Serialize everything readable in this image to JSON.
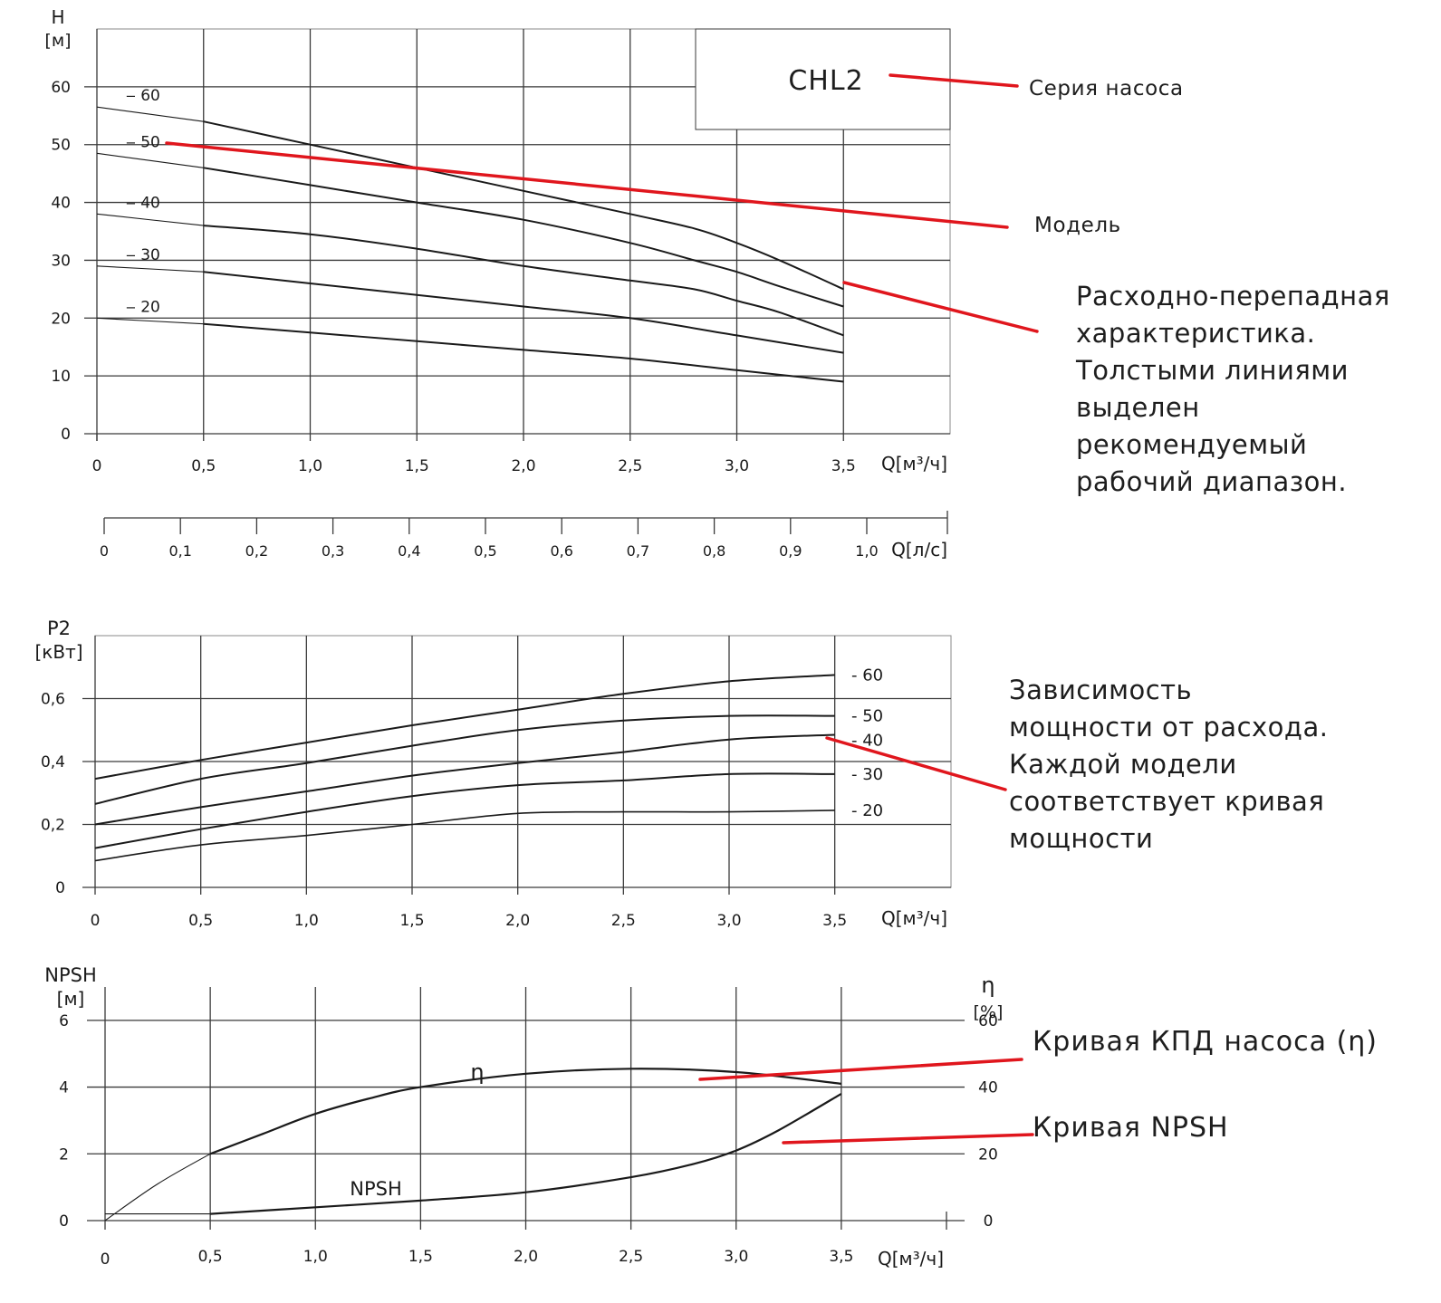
{
  "colors": {
    "curve": "#1a1a1a",
    "grid": "#3a3a3a",
    "pointer": "#e0161d",
    "text": "#1e1e1e"
  },
  "legend_box": {
    "title": "CHL2"
  },
  "annotations": {
    "series": "Серия насоса",
    "model": "Модель",
    "head_curve": "Расходно-перепадная\nхарактеристика.\nТолстыми линиями\nвыделен\nрекомендуемый\nрабочий диапазон.",
    "power": "Зависимость\nмощности от расхода.\nКаждой модели\nсоответствует кривая\nмощности",
    "eff": "Кривая КПД насоса (η)",
    "npsh": "Кривая NPSH"
  },
  "chart_data": [
    {
      "type": "line",
      "title": "CHL2",
      "ylabel": "H",
      "yunit": "[м]",
      "xunit": "Q[м³/ч]",
      "xlim": [
        0,
        4.0
      ],
      "ylim": [
        0,
        70
      ],
      "grid": true,
      "x_ticks": [
        0,
        0.5,
        1.0,
        1.5,
        2.0,
        2.5,
        3.0,
        3.5
      ],
      "x_tick_labels": [
        "0",
        "0,5",
        "1,0",
        "1,5",
        "2,0",
        "2,5",
        "3,0",
        "3,5"
      ],
      "y_ticks": [
        0,
        10,
        20,
        30,
        40,
        50,
        60
      ],
      "y_tick_labels": [
        "0",
        "10",
        "20",
        "30",
        "40",
        "50",
        "60"
      ],
      "series": [
        {
          "name": "-60",
          "label": "‒ 60",
          "x": [
            0,
            0.5,
            1.0,
            1.5,
            2.0,
            2.5,
            2.8,
            3.0,
            3.2,
            3.5
          ],
          "y": [
            56.5,
            54,
            50,
            46,
            42,
            38,
            35.5,
            33,
            30,
            25
          ]
        },
        {
          "name": "-50",
          "label": "‒ 50",
          "x": [
            0,
            0.5,
            1.0,
            1.5,
            2.0,
            2.5,
            2.8,
            3.0,
            3.2,
            3.5
          ],
          "y": [
            48.5,
            46,
            43,
            40,
            37,
            33,
            30,
            28,
            25.5,
            22
          ]
        },
        {
          "name": "-40",
          "label": "‒ 40",
          "x": [
            0,
            0.5,
            1.0,
            1.5,
            2.0,
            2.5,
            2.8,
            3.0,
            3.2,
            3.5
          ],
          "y": [
            38,
            36,
            34.5,
            32,
            29,
            26.5,
            25,
            23,
            21,
            17
          ]
        },
        {
          "name": "-30",
          "label": "‒ 30",
          "x": [
            0,
            0.5,
            1.0,
            1.5,
            2.0,
            2.5,
            3.0,
            3.5
          ],
          "y": [
            29,
            28,
            26,
            24,
            22,
            20,
            17,
            14
          ]
        },
        {
          "name": "-20",
          "label": "‒ 20",
          "x": [
            0,
            0.5,
            1.0,
            1.5,
            2.0,
            2.5,
            3.0,
            3.5
          ],
          "y": [
            20,
            19,
            17.5,
            16,
            14.5,
            13,
            11,
            9
          ]
        }
      ]
    },
    {
      "type": "axis",
      "xunit": "Q[л/с]",
      "x_ticks": [
        0,
        0.1,
        0.2,
        0.3,
        0.4,
        0.5,
        0.6,
        0.7,
        0.8,
        0.9,
        1.0
      ],
      "x_tick_labels": [
        "0",
        "0,1",
        "0,2",
        "0,3",
        "0,4",
        "0,5",
        "0,6",
        "0,7",
        "0,8",
        "0,9",
        "1,0"
      ]
    },
    {
      "type": "line",
      "ylabel": "P2",
      "yunit": "[кВт]",
      "xunit": "Q[м³/ч]",
      "xlim": [
        0,
        4.0
      ],
      "ylim": [
        0,
        0.8
      ],
      "grid": true,
      "x_ticks": [
        0,
        0.5,
        1.0,
        1.5,
        2.0,
        2.5,
        3.0,
        3.5
      ],
      "x_tick_labels": [
        "0",
        "0,5",
        "1,0",
        "1,5",
        "2,0",
        "2,5",
        "3,0",
        "3,5"
      ],
      "y_ticks": [
        0,
        0.2,
        0.4,
        0.6
      ],
      "y_tick_labels": [
        "0",
        "0,2",
        "0,4",
        "0,6"
      ],
      "series": [
        {
          "name": "-60",
          "label": "- 60",
          "x": [
            0,
            0.5,
            1.0,
            1.5,
            2.0,
            2.5,
            3.0,
            3.5
          ],
          "y": [
            0.345,
            0.405,
            0.46,
            0.515,
            0.565,
            0.615,
            0.655,
            0.675
          ]
        },
        {
          "name": "-50",
          "label": "- 50",
          "x": [
            0,
            0.5,
            1.0,
            1.5,
            2.0,
            2.5,
            3.0,
            3.5
          ],
          "y": [
            0.265,
            0.345,
            0.395,
            0.45,
            0.5,
            0.53,
            0.545,
            0.545
          ]
        },
        {
          "name": "-40",
          "label": "- 40",
          "x": [
            0,
            0.5,
            1.0,
            1.5,
            2.0,
            2.5,
            3.0,
            3.5
          ],
          "y": [
            0.2,
            0.255,
            0.305,
            0.355,
            0.395,
            0.43,
            0.47,
            0.485
          ]
        },
        {
          "name": "-30",
          "label": "- 30",
          "x": [
            0,
            0.5,
            1.0,
            1.5,
            2.0,
            2.5,
            3.0,
            3.5
          ],
          "y": [
            0.125,
            0.185,
            0.24,
            0.29,
            0.325,
            0.34,
            0.36,
            0.36
          ]
        },
        {
          "name": "-20",
          "label": "- 20",
          "x": [
            0,
            0.5,
            1.0,
            1.5,
            2.0,
            2.5,
            3.0,
            3.5
          ],
          "y": [
            0.085,
            0.135,
            0.165,
            0.2,
            0.235,
            0.24,
            0.24,
            0.245
          ]
        }
      ]
    },
    {
      "type": "line",
      "ylabel": "NPSH",
      "yunit": "[м]",
      "y2label": "η",
      "y2unit": "[%]",
      "xunit": "Q[м³/ч]",
      "xlim": [
        0,
        4.0
      ],
      "ylim": [
        0,
        7
      ],
      "y2lim": [
        0,
        70
      ],
      "grid": true,
      "x_ticks": [
        0,
        0.5,
        1.0,
        1.5,
        2.0,
        2.5,
        3.0,
        3.5
      ],
      "x_tick_labels": [
        "0",
        "0,5",
        "1,0",
        "1,5",
        "2,0",
        "2,5",
        "3,0",
        "3,5"
      ],
      "y_ticks": [
        0,
        2,
        4,
        6
      ],
      "y_tick_labels": [
        "0",
        "2",
        "4",
        "6"
      ],
      "y2_ticks": [
        0,
        20,
        40,
        60
      ],
      "y2_tick_labels": [
        "0",
        "20",
        "40",
        "60"
      ],
      "series": [
        {
          "name": "η",
          "label": "η",
          "axis": "y2",
          "x": [
            0,
            0.25,
            0.5,
            0.75,
            1.0,
            1.25,
            1.5,
            2.0,
            2.5,
            3.0,
            3.5
          ],
          "y": [
            0,
            11,
            20,
            26,
            32,
            36.5,
            40,
            44,
            45.5,
            44.5,
            41
          ]
        },
        {
          "name": "NPSH",
          "label": "NPSH",
          "axis": "y",
          "x": [
            0,
            0.5,
            1.0,
            1.5,
            2.0,
            2.5,
            2.8,
            3.0,
            3.2,
            3.5
          ],
          "y": [
            0.2,
            0.2,
            0.4,
            0.6,
            0.85,
            1.3,
            1.7,
            2.1,
            2.7,
            3.8
          ]
        }
      ]
    }
  ]
}
